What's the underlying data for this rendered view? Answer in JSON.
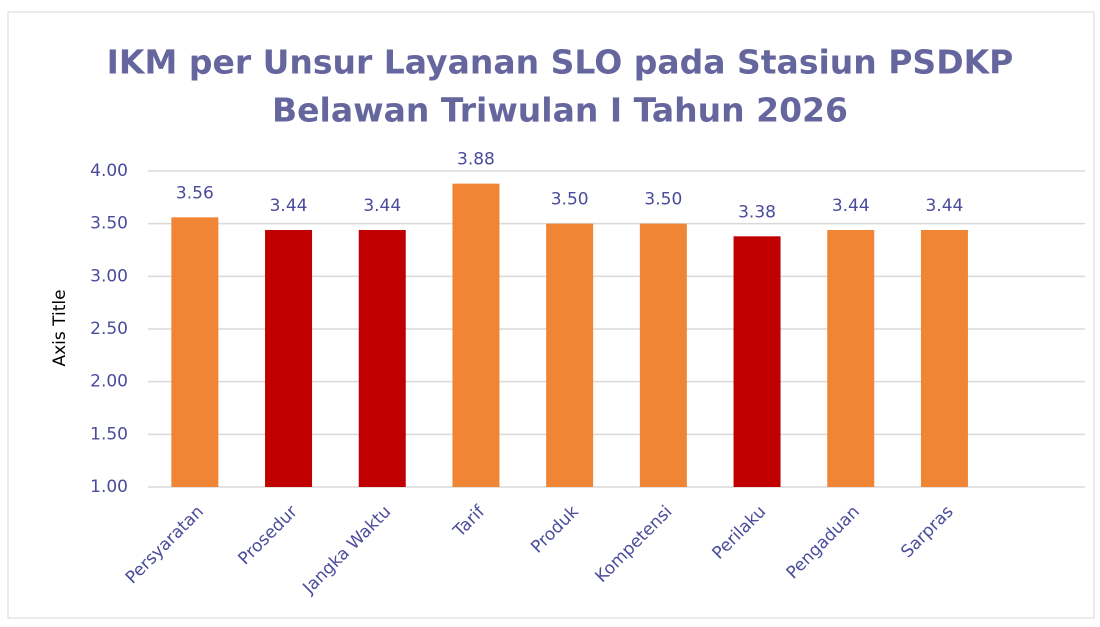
{
  "chart_data": {
    "type": "bar",
    "title": [
      "IKM per Unsur Layanan SLO pada Stasiun PSDKP",
      "Belawan Triwulan I Tahun 2026"
    ],
    "y_axis_title": "Axis Title",
    "categories": [
      "Persyaratan",
      "Prosedur",
      "Jangka Waktu",
      "Tarif",
      "Produk",
      "Kompetensi",
      "Perilaku",
      "Pengaduan",
      "Sarpras"
    ],
    "values": [
      3.56,
      3.44,
      3.44,
      3.88,
      3.5,
      3.5,
      3.38,
      3.44,
      3.44
    ],
    "value_labels": [
      "3.56",
      "3.44",
      "3.44",
      "3.88",
      "3.50",
      "3.50",
      "3.38",
      "3.44",
      "3.44"
    ],
    "colors": [
      "#f08536",
      "#c00000",
      "#c00000",
      "#f08536",
      "#f08536",
      "#f08536",
      "#c00000",
      "#f08536",
      "#f08536"
    ],
    "ylim": [
      1,
      4
    ],
    "yticks": [
      {
        "value": 1,
        "label": "1.00"
      },
      {
        "value": 1.5,
        "label": "1.50"
      },
      {
        "value": 2,
        "label": "2.00"
      },
      {
        "value": 2.5,
        "label": "2.50"
      },
      {
        "value": 3,
        "label": "3.00"
      },
      {
        "value": 3.5,
        "label": "3.50"
      },
      {
        "value": 4,
        "label": "4.00"
      }
    ],
    "grid": true
  }
}
